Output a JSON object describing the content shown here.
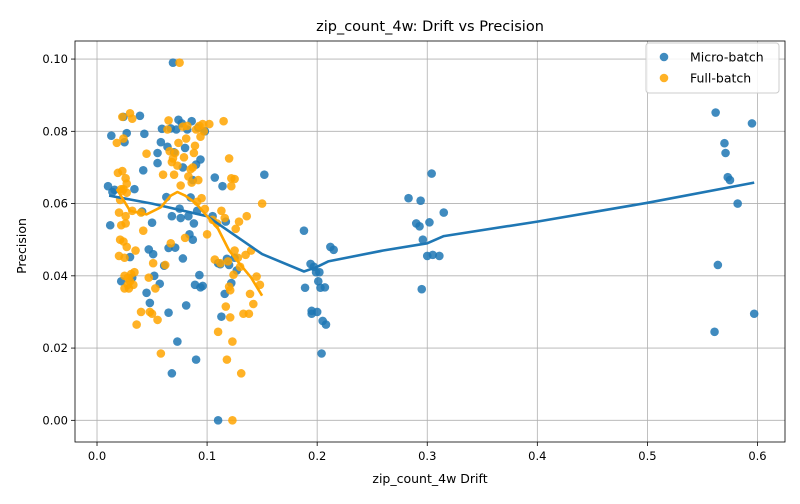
{
  "chart_data": {
    "type": "scatter",
    "title": "zip_count_4w: Drift vs Precision",
    "xlabel": "zip_count_4w Drift",
    "ylabel": "Precision",
    "xlim": [
      -0.02,
      0.625
    ],
    "ylim": [
      -0.006,
      0.105
    ],
    "xticks": [
      0.0,
      0.1,
      0.2,
      0.3,
      0.4,
      0.5,
      0.6
    ],
    "xtick_labels": [
      "0.0",
      "0.1",
      "0.2",
      "0.3",
      "0.4",
      "0.5",
      "0.6"
    ],
    "yticks": [
      0.0,
      0.02,
      0.04,
      0.06,
      0.08,
      0.1
    ],
    "ytick_labels": [
      "0.00",
      "0.02",
      "0.04",
      "0.06",
      "0.08",
      "0.10"
    ],
    "grid": true,
    "legend_position": "top-right",
    "series": [
      {
        "name": "Micro-batch",
        "color": "#1f77b4",
        "points": [
          [
            0.01,
            0.0648
          ],
          [
            0.012,
            0.054
          ],
          [
            0.013,
            0.0788
          ],
          [
            0.014,
            0.0632
          ],
          [
            0.016,
            0.0638
          ],
          [
            0.022,
            0.0385
          ],
          [
            0.024,
            0.084
          ],
          [
            0.025,
            0.077
          ],
          [
            0.027,
            0.0795
          ],
          [
            0.03,
            0.0452
          ],
          [
            0.032,
            0.0395
          ],
          [
            0.034,
            0.064
          ],
          [
            0.039,
            0.0843
          ],
          [
            0.041,
            0.0578
          ],
          [
            0.042,
            0.0692
          ],
          [
            0.043,
            0.0793
          ],
          [
            0.045,
            0.0353
          ],
          [
            0.047,
            0.0473
          ],
          [
            0.048,
            0.0325
          ],
          [
            0.05,
            0.0547
          ],
          [
            0.051,
            0.046
          ],
          [
            0.052,
            0.04
          ],
          [
            0.055,
            0.0712
          ],
          [
            0.055,
            0.074
          ],
          [
            0.057,
            0.0378
          ],
          [
            0.058,
            0.077
          ],
          [
            0.059,
            0.0807
          ],
          [
            0.061,
            0.0428
          ],
          [
            0.063,
            0.0618
          ],
          [
            0.064,
            0.0757
          ],
          [
            0.065,
            0.0298
          ],
          [
            0.065,
            0.0477
          ],
          [
            0.067,
            0.0808
          ],
          [
            0.068,
            0.013
          ],
          [
            0.068,
            0.0565
          ],
          [
            0.069,
            0.099
          ],
          [
            0.07,
            0.0742
          ],
          [
            0.071,
            0.0478
          ],
          [
            0.072,
            0.0805
          ],
          [
            0.073,
            0.0218
          ],
          [
            0.074,
            0.0832
          ],
          [
            0.075,
            0.0586
          ],
          [
            0.076,
            0.056
          ],
          [
            0.077,
            0.0822
          ],
          [
            0.078,
            0.0448
          ],
          [
            0.078,
            0.07
          ],
          [
            0.08,
            0.0754
          ],
          [
            0.081,
            0.0318
          ],
          [
            0.082,
            0.0805
          ],
          [
            0.083,
            0.0565
          ],
          [
            0.084,
            0.0515
          ],
          [
            0.085,
            0.0617
          ],
          [
            0.086,
            0.0828
          ],
          [
            0.087,
            0.05
          ],
          [
            0.087,
            0.0665
          ],
          [
            0.088,
            0.0545
          ],
          [
            0.089,
            0.0375
          ],
          [
            0.09,
            0.0708
          ],
          [
            0.09,
            0.0168
          ],
          [
            0.091,
            0.058
          ],
          [
            0.092,
            0.081
          ],
          [
            0.093,
            0.0402
          ],
          [
            0.094,
            0.0722
          ],
          [
            0.094,
            0.0368
          ],
          [
            0.096,
            0.0372
          ],
          [
            0.098,
            0.08
          ],
          [
            0.105,
            0.0565
          ],
          [
            0.107,
            0.0672
          ],
          [
            0.11,
            0.0435
          ],
          [
            0.11,
            0.0
          ],
          [
            0.112,
            0.0432
          ],
          [
            0.113,
            0.0287
          ],
          [
            0.114,
            0.0648
          ],
          [
            0.116,
            0.035
          ],
          [
            0.117,
            0.055
          ],
          [
            0.118,
            0.0447
          ],
          [
            0.12,
            0.043
          ],
          [
            0.122,
            0.038
          ],
          [
            0.125,
            0.045
          ],
          [
            0.127,
            0.0415
          ],
          [
            0.152,
            0.068
          ],
          [
            0.188,
            0.0525
          ],
          [
            0.189,
            0.0367
          ],
          [
            0.194,
            0.0433
          ],
          [
            0.195,
            0.0295
          ],
          [
            0.195,
            0.0303
          ],
          [
            0.197,
            0.0425
          ],
          [
            0.199,
            0.041
          ],
          [
            0.2,
            0.03
          ],
          [
            0.201,
            0.0385
          ],
          [
            0.202,
            0.041
          ],
          [
            0.203,
            0.0367
          ],
          [
            0.204,
            0.0185
          ],
          [
            0.205,
            0.0275
          ],
          [
            0.207,
            0.0368
          ],
          [
            0.208,
            0.0265
          ],
          [
            0.212,
            0.048
          ],
          [
            0.215,
            0.0472
          ],
          [
            0.283,
            0.0615
          ],
          [
            0.29,
            0.0545
          ],
          [
            0.293,
            0.0537
          ],
          [
            0.294,
            0.0608
          ],
          [
            0.295,
            0.0363
          ],
          [
            0.296,
            0.05
          ],
          [
            0.3,
            0.0455
          ],
          [
            0.302,
            0.0548
          ],
          [
            0.304,
            0.0683
          ],
          [
            0.305,
            0.0458
          ],
          [
            0.311,
            0.0455
          ],
          [
            0.315,
            0.0575
          ],
          [
            0.561,
            0.0245
          ],
          [
            0.562,
            0.0852
          ],
          [
            0.564,
            0.043
          ],
          [
            0.57,
            0.0767
          ],
          [
            0.571,
            0.074
          ],
          [
            0.573,
            0.0673
          ],
          [
            0.575,
            0.0665
          ],
          [
            0.582,
            0.06
          ],
          [
            0.595,
            0.0822
          ],
          [
            0.597,
            0.0295
          ]
        ],
        "trend": [
          [
            0.011,
            0.0622
          ],
          [
            0.05,
            0.06
          ],
          [
            0.1,
            0.0565
          ],
          [
            0.15,
            0.046
          ],
          [
            0.188,
            0.0412
          ],
          [
            0.2,
            0.0425
          ],
          [
            0.21,
            0.044
          ],
          [
            0.26,
            0.047
          ],
          [
            0.3,
            0.049
          ],
          [
            0.315,
            0.051
          ],
          [
            0.4,
            0.055
          ],
          [
            0.5,
            0.0602
          ],
          [
            0.597,
            0.0658
          ]
        ]
      },
      {
        "name": "Full-batch",
        "color": "#ffa500",
        "points": [
          [
            0.018,
            0.0768
          ],
          [
            0.019,
            0.0685
          ],
          [
            0.02,
            0.0575
          ],
          [
            0.02,
            0.0455
          ],
          [
            0.021,
            0.061
          ],
          [
            0.021,
            0.05
          ],
          [
            0.022,
            0.064
          ],
          [
            0.022,
            0.054
          ],
          [
            0.023,
            0.069
          ],
          [
            0.023,
            0.084
          ],
          [
            0.023,
            0.0635
          ],
          [
            0.024,
            0.078
          ],
          [
            0.024,
            0.064
          ],
          [
            0.024,
            0.0495
          ],
          [
            0.025,
            0.0365
          ],
          [
            0.025,
            0.045
          ],
          [
            0.025,
            0.04
          ],
          [
            0.026,
            0.067
          ],
          [
            0.026,
            0.0565
          ],
          [
            0.026,
            0.0545
          ],
          [
            0.027,
            0.0655
          ],
          [
            0.027,
            0.063
          ],
          [
            0.027,
            0.048
          ],
          [
            0.028,
            0.0395
          ],
          [
            0.028,
            0.0375
          ],
          [
            0.029,
            0.0365
          ],
          [
            0.03,
            0.085
          ],
          [
            0.03,
            0.0385
          ],
          [
            0.031,
            0.0405
          ],
          [
            0.032,
            0.0835
          ],
          [
            0.032,
            0.058
          ],
          [
            0.033,
            0.0375
          ],
          [
            0.034,
            0.041
          ],
          [
            0.035,
            0.047
          ],
          [
            0.036,
            0.0265
          ],
          [
            0.04,
            0.03
          ],
          [
            0.04,
            0.0575
          ],
          [
            0.042,
            0.0525
          ],
          [
            0.045,
            0.0738
          ],
          [
            0.047,
            0.0395
          ],
          [
            0.048,
            0.03
          ],
          [
            0.05,
            0.0295
          ],
          [
            0.051,
            0.0435
          ],
          [
            0.053,
            0.0365
          ],
          [
            0.055,
            0.0278
          ],
          [
            0.058,
            0.0185
          ],
          [
            0.06,
            0.068
          ],
          [
            0.062,
            0.043
          ],
          [
            0.064,
            0.0805
          ],
          [
            0.065,
            0.083
          ],
          [
            0.066,
            0.0745
          ],
          [
            0.067,
            0.049
          ],
          [
            0.068,
            0.0715
          ],
          [
            0.069,
            0.0725
          ],
          [
            0.07,
            0.068
          ],
          [
            0.071,
            0.074
          ],
          [
            0.073,
            0.0705
          ],
          [
            0.074,
            0.0768
          ],
          [
            0.075,
            0.099
          ],
          [
            0.076,
            0.065
          ],
          [
            0.078,
            0.0813
          ],
          [
            0.079,
            0.0728
          ],
          [
            0.08,
            0.0505
          ],
          [
            0.081,
            0.078
          ],
          [
            0.082,
            0.0815
          ],
          [
            0.083,
            0.0675
          ],
          [
            0.085,
            0.0695
          ],
          [
            0.086,
            0.0658
          ],
          [
            0.087,
            0.07
          ],
          [
            0.088,
            0.074
          ],
          [
            0.089,
            0.076
          ],
          [
            0.09,
            0.0805
          ],
          [
            0.091,
            0.0605
          ],
          [
            0.092,
            0.0665
          ],
          [
            0.093,
            0.0815
          ],
          [
            0.094,
            0.0785
          ],
          [
            0.095,
            0.0615
          ],
          [
            0.096,
            0.082
          ],
          [
            0.097,
            0.08
          ],
          [
            0.098,
            0.0585
          ],
          [
            0.1,
            0.0515
          ],
          [
            0.102,
            0.082
          ],
          [
            0.105,
            0.0555
          ],
          [
            0.107,
            0.0445
          ],
          [
            0.109,
            0.0545
          ],
          [
            0.11,
            0.0245
          ],
          [
            0.112,
            0.0435
          ],
          [
            0.113,
            0.058
          ],
          [
            0.115,
            0.0828
          ],
          [
            0.116,
            0.056
          ],
          [
            0.117,
            0.0315
          ],
          [
            0.118,
            0.0168
          ],
          [
            0.119,
            0.044
          ],
          [
            0.12,
            0.0725
          ],
          [
            0.12,
            0.037
          ],
          [
            0.121,
            0.0285
          ],
          [
            0.121,
            0.036
          ],
          [
            0.122,
            0.0648
          ],
          [
            0.122,
            0.067
          ],
          [
            0.123,
            0.0
          ],
          [
            0.123,
            0.0218
          ],
          [
            0.124,
            0.0403
          ],
          [
            0.125,
            0.047
          ],
          [
            0.125,
            0.0668
          ],
          [
            0.126,
            0.053
          ],
          [
            0.128,
            0.045
          ],
          [
            0.129,
            0.055
          ],
          [
            0.13,
            0.0425
          ],
          [
            0.131,
            0.013
          ],
          [
            0.133,
            0.0295
          ],
          [
            0.135,
            0.0458
          ],
          [
            0.136,
            0.0565
          ],
          [
            0.138,
            0.0295
          ],
          [
            0.139,
            0.035
          ],
          [
            0.14,
            0.047
          ],
          [
            0.142,
            0.0322
          ],
          [
            0.145,
            0.0398
          ],
          [
            0.148,
            0.0375
          ],
          [
            0.15,
            0.06
          ]
        ],
        "trend": [
          [
            0.018,
            0.064
          ],
          [
            0.03,
            0.058
          ],
          [
            0.045,
            0.057
          ],
          [
            0.058,
            0.059
          ],
          [
            0.067,
            0.0622
          ],
          [
            0.073,
            0.0632
          ],
          [
            0.08,
            0.0622
          ],
          [
            0.09,
            0.06
          ],
          [
            0.1,
            0.0565
          ],
          [
            0.11,
            0.053
          ],
          [
            0.12,
            0.047
          ],
          [
            0.13,
            0.0432
          ],
          [
            0.14,
            0.0395
          ],
          [
            0.15,
            0.0345
          ]
        ]
      }
    ]
  }
}
